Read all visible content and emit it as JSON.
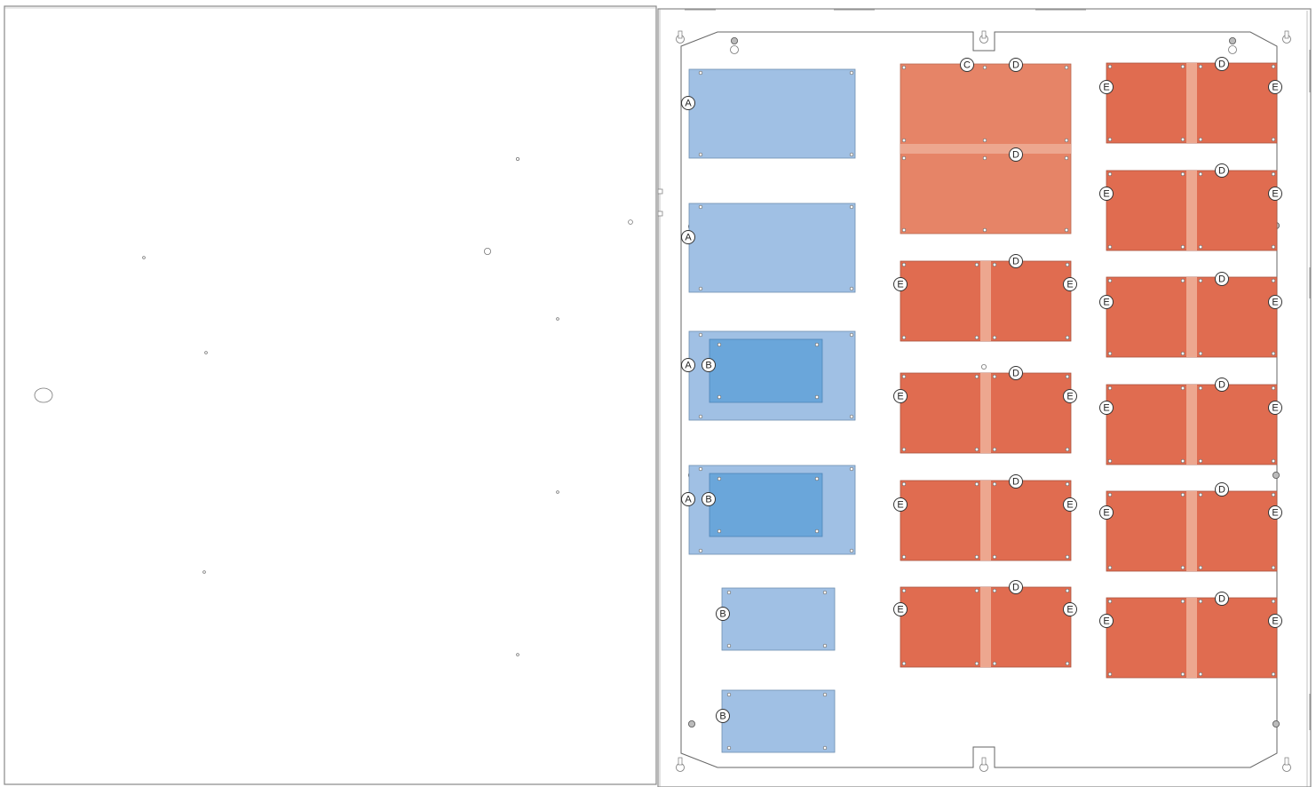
{
  "colors": {
    "panel_a": "#a0c0e4",
    "panel_b_inset": "#6aa6da",
    "panel_c": "#e68467",
    "panel_e": "#e06c50",
    "splice_strip": "#eda78f",
    "outline": "#666666",
    "background": "#ffffff"
  },
  "labels": {
    "a": "A",
    "b": "B",
    "c": "C",
    "d": "D",
    "e": "E"
  }
}
